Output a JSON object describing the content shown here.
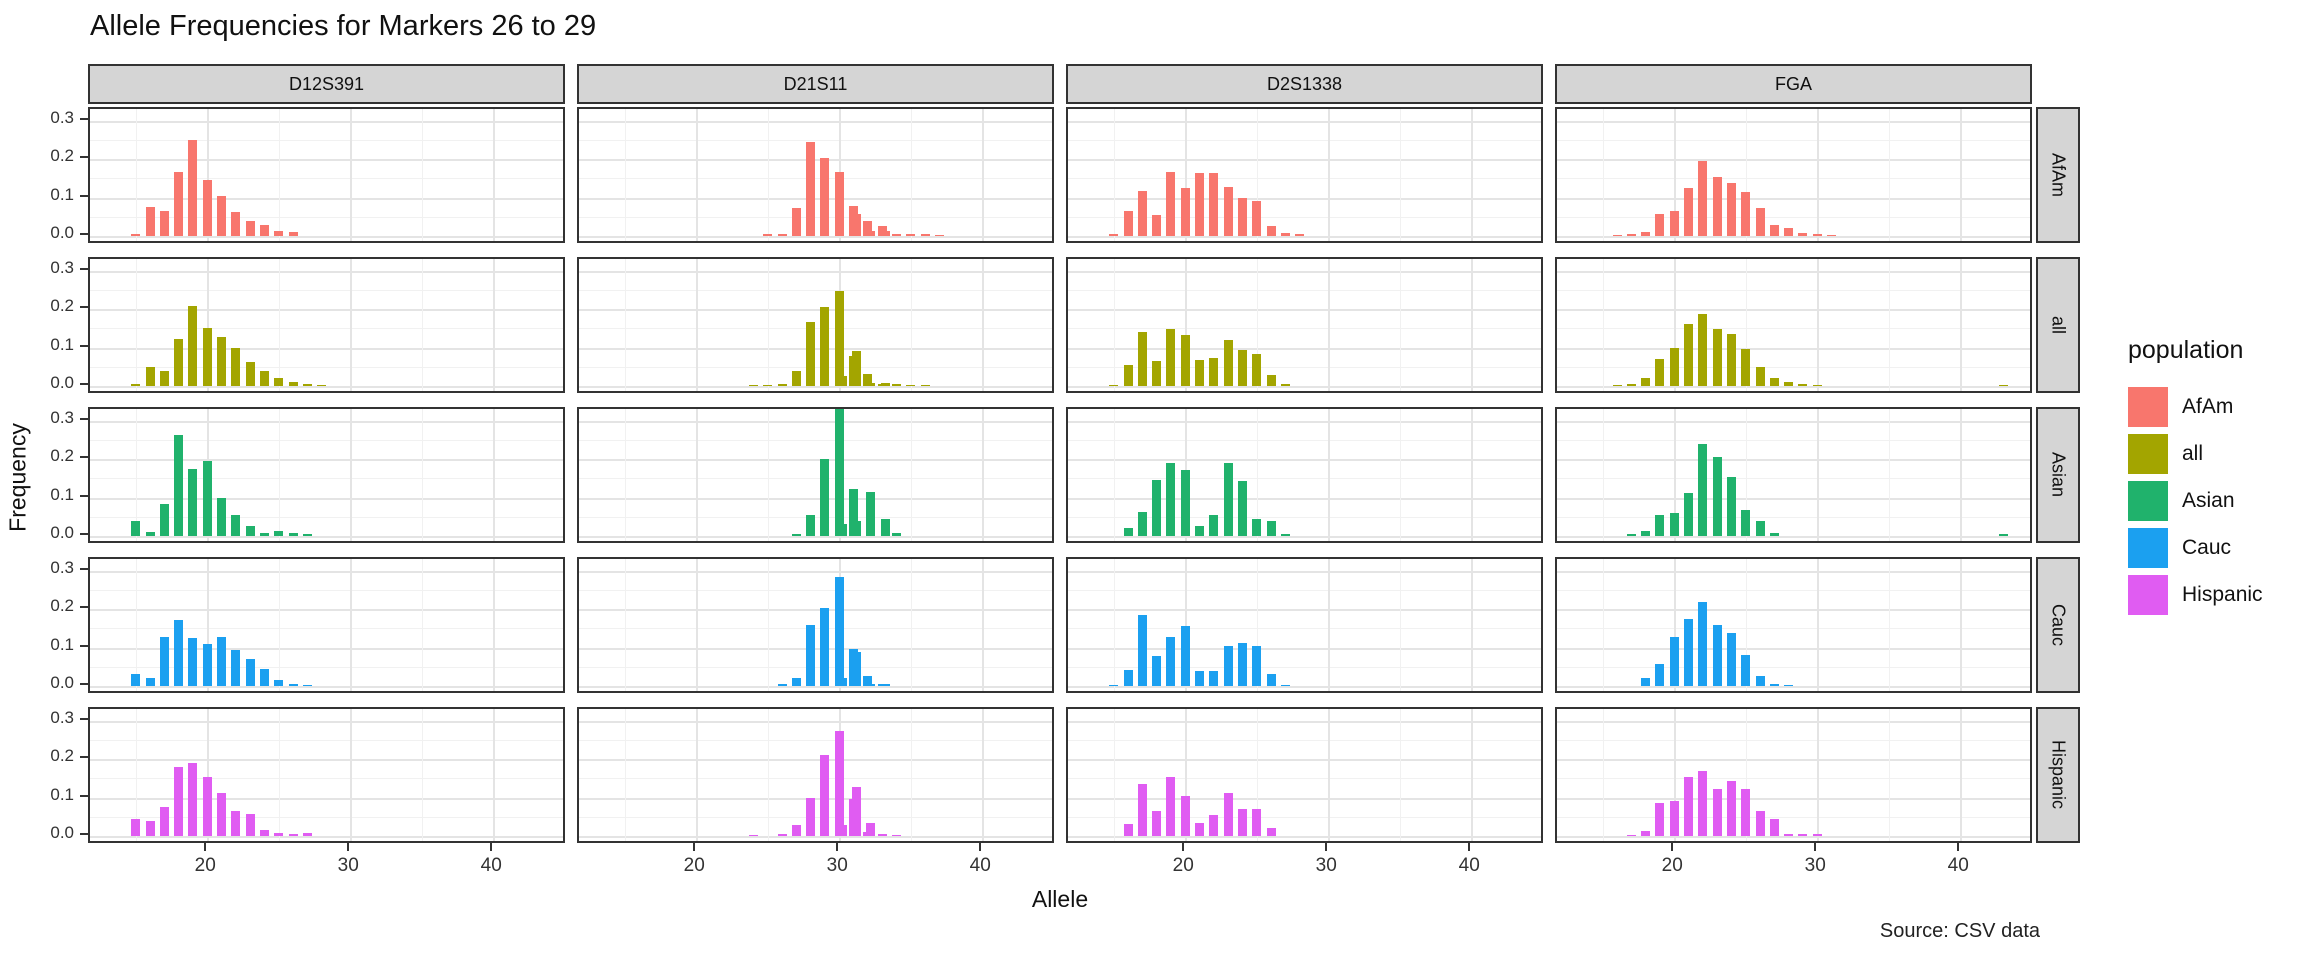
{
  "title": "Allele Frequencies for Markers 26 to 29",
  "axes": {
    "x_label": "Allele",
    "y_label": "Frequency",
    "x_ticks": [
      "20",
      "30",
      "40"
    ],
    "y_ticks": [
      "0.0",
      "0.1",
      "0.2",
      "0.3"
    ]
  },
  "source_note": "Source: CSV data",
  "legend": {
    "title": "population",
    "entries": [
      {
        "label": "AfAm",
        "color": "#F8766D"
      },
      {
        "label": "all",
        "color": "#A3A500"
      },
      {
        "label": "Asian",
        "color": "#20B26C"
      },
      {
        "label": "Cauc",
        "color": "#1BA0F0"
      },
      {
        "label": "Hispanic",
        "color": "#E05CF2"
      }
    ]
  },
  "chart_data": {
    "type": "bar",
    "title": "Allele Frequencies for Markers 26 to 29",
    "xlabel": "Allele",
    "ylabel": "Frequency",
    "facet_columns": [
      "D12S391",
      "D21S11",
      "D2S1338",
      "FGA"
    ],
    "facet_rows": [
      "AfAm",
      "all",
      "Asian",
      "Cauc",
      "Hispanic"
    ],
    "xlim": [
      12,
      46
    ],
    "ylim": [
      0,
      0.33
    ],
    "x_major_ticks": [
      20,
      30,
      40
    ],
    "y_major_ticks": [
      0.0,
      0.1,
      0.2,
      0.3
    ],
    "grid": "major+minor",
    "legend_position": "right",
    "panels": [
      {
        "marker": "D12S391",
        "population": "AfAm",
        "color": "#F8766D",
        "bars": [
          [
            15,
            0.004
          ],
          [
            16,
            0.076
          ],
          [
            17,
            0.065
          ],
          [
            18,
            0.165
          ],
          [
            19,
            0.25
          ],
          [
            20,
            0.145
          ],
          [
            21,
            0.104
          ],
          [
            22,
            0.062
          ],
          [
            23,
            0.04
          ],
          [
            24,
            0.028
          ],
          [
            25,
            0.012
          ],
          [
            26,
            0.01
          ]
        ]
      },
      {
        "marker": "D21S11",
        "population": "AfAm",
        "color": "#F8766D",
        "bars": [
          [
            25,
            0.004
          ],
          [
            26,
            0.006
          ],
          [
            27,
            0.073
          ],
          [
            28,
            0.245
          ],
          [
            29,
            0.203
          ],
          [
            30,
            0.165
          ],
          [
            31,
            0.078
          ],
          [
            31.2,
            0.057
          ],
          [
            32,
            0.04
          ],
          [
            32.2,
            0.012
          ],
          [
            33,
            0.025
          ],
          [
            33.2,
            0.012
          ],
          [
            34,
            0.005
          ],
          [
            35,
            0.006
          ],
          [
            36,
            0.004
          ],
          [
            37,
            0.003
          ]
        ]
      },
      {
        "marker": "D2S1338",
        "population": "AfAm",
        "color": "#F8766D",
        "bars": [
          [
            15,
            0.005
          ],
          [
            16,
            0.065
          ],
          [
            17,
            0.118
          ],
          [
            18,
            0.055
          ],
          [
            19,
            0.165
          ],
          [
            20,
            0.125
          ],
          [
            21,
            0.163
          ],
          [
            22,
            0.163
          ],
          [
            23,
            0.127
          ],
          [
            24,
            0.098
          ],
          [
            25,
            0.092
          ],
          [
            26,
            0.026
          ],
          [
            27,
            0.009
          ],
          [
            28,
            0.004
          ]
        ]
      },
      {
        "marker": "FGA",
        "population": "AfAm",
        "color": "#F8766D",
        "bars": [
          [
            16,
            0.003
          ],
          [
            17,
            0.004
          ],
          [
            18,
            0.01
          ],
          [
            19,
            0.058
          ],
          [
            20,
            0.066
          ],
          [
            21,
            0.124
          ],
          [
            22,
            0.195
          ],
          [
            23,
            0.154
          ],
          [
            24,
            0.138
          ],
          [
            25,
            0.114
          ],
          [
            26,
            0.074
          ],
          [
            27,
            0.029
          ],
          [
            28,
            0.021
          ],
          [
            29,
            0.008
          ],
          [
            30,
            0.004
          ],
          [
            31,
            0.003
          ]
        ]
      },
      {
        "marker": "D12S391",
        "population": "all",
        "color": "#A3A500",
        "bars": [
          [
            15,
            0.004
          ],
          [
            16,
            0.05
          ],
          [
            17,
            0.04
          ],
          [
            18,
            0.122
          ],
          [
            19,
            0.207
          ],
          [
            20,
            0.15
          ],
          [
            21,
            0.127
          ],
          [
            22,
            0.1
          ],
          [
            23,
            0.063
          ],
          [
            24,
            0.04
          ],
          [
            25,
            0.022
          ],
          [
            26,
            0.01
          ],
          [
            27,
            0.004
          ],
          [
            28,
            0.002
          ]
        ]
      },
      {
        "marker": "D21S11",
        "population": "all",
        "color": "#A3A500",
        "bars": [
          [
            24,
            0.003
          ],
          [
            25,
            0.003
          ],
          [
            26,
            0.004
          ],
          [
            27,
            0.038
          ],
          [
            28,
            0.165
          ],
          [
            29,
            0.205
          ],
          [
            30,
            0.247
          ],
          [
            30.2,
            0.025
          ],
          [
            31,
            0.078
          ],
          [
            31.2,
            0.091
          ],
          [
            32,
            0.031
          ],
          [
            32.2,
            0.008
          ],
          [
            33,
            0.004
          ],
          [
            33.2,
            0.009
          ],
          [
            34,
            0.004
          ],
          [
            35,
            0.003
          ],
          [
            36,
            0.003
          ]
        ]
      },
      {
        "marker": "D2S1338",
        "population": "all",
        "color": "#A3A500",
        "bars": [
          [
            15,
            0.003
          ],
          [
            16,
            0.055
          ],
          [
            17,
            0.14
          ],
          [
            18,
            0.065
          ],
          [
            19,
            0.148
          ],
          [
            20,
            0.132
          ],
          [
            21,
            0.068
          ],
          [
            22,
            0.072
          ],
          [
            23,
            0.12
          ],
          [
            24,
            0.094
          ],
          [
            25,
            0.084
          ],
          [
            26,
            0.028
          ],
          [
            27,
            0.004
          ]
        ]
      },
      {
        "marker": "FGA",
        "population": "all",
        "color": "#A3A500",
        "bars": [
          [
            16,
            0.003
          ],
          [
            17,
            0.005
          ],
          [
            18,
            0.02
          ],
          [
            19,
            0.069
          ],
          [
            20,
            0.1
          ],
          [
            21,
            0.162
          ],
          [
            22,
            0.187
          ],
          [
            23,
            0.149
          ],
          [
            24,
            0.135
          ],
          [
            25,
            0.097
          ],
          [
            26,
            0.049
          ],
          [
            27,
            0.022
          ],
          [
            28,
            0.011
          ],
          [
            29,
            0.004
          ],
          [
            30,
            0.003
          ],
          [
            43,
            0.002
          ]
        ]
      },
      {
        "marker": "D12S391",
        "population": "Asian",
        "color": "#20B26C",
        "bars": [
          [
            15,
            0.04
          ],
          [
            16,
            0.01
          ],
          [
            17,
            0.082
          ],
          [
            18,
            0.262
          ],
          [
            19,
            0.175
          ],
          [
            20,
            0.196
          ],
          [
            21,
            0.098
          ],
          [
            22,
            0.054
          ],
          [
            23,
            0.025
          ],
          [
            24,
            0.008
          ],
          [
            25,
            0.014
          ],
          [
            26,
            0.009
          ],
          [
            27,
            0.004
          ]
        ]
      },
      {
        "marker": "D21S11",
        "population": "Asian",
        "color": "#20B26C",
        "bars": [
          [
            27,
            0.004
          ],
          [
            28,
            0.055
          ],
          [
            29,
            0.2
          ],
          [
            30,
            0.33
          ],
          [
            30.2,
            0.03
          ],
          [
            31,
            0.122
          ],
          [
            31.2,
            0.038
          ],
          [
            32.2,
            0.113
          ],
          [
            33.2,
            0.045
          ],
          [
            34,
            0.008
          ]
        ]
      },
      {
        "marker": "D2S1338",
        "population": "Asian",
        "color": "#20B26C",
        "bars": [
          [
            16,
            0.022
          ],
          [
            17,
            0.062
          ],
          [
            18,
            0.145
          ],
          [
            19,
            0.19
          ],
          [
            20,
            0.172
          ],
          [
            21,
            0.025
          ],
          [
            22,
            0.055
          ],
          [
            23,
            0.19
          ],
          [
            24,
            0.142
          ],
          [
            25,
            0.045
          ],
          [
            26,
            0.04
          ],
          [
            27,
            0.005
          ]
        ]
      },
      {
        "marker": "FGA",
        "population": "Asian",
        "color": "#20B26C",
        "bars": [
          [
            17,
            0.004
          ],
          [
            18,
            0.012
          ],
          [
            19,
            0.054
          ],
          [
            20,
            0.059
          ],
          [
            21,
            0.111
          ],
          [
            22,
            0.238
          ],
          [
            23,
            0.205
          ],
          [
            24,
            0.153
          ],
          [
            25,
            0.068
          ],
          [
            26,
            0.039
          ],
          [
            27,
            0.008
          ],
          [
            43,
            0.005
          ]
        ]
      },
      {
        "marker": "D12S391",
        "population": "Cauc",
        "color": "#1BA0F0",
        "bars": [
          [
            15,
            0.032
          ],
          [
            16,
            0.022
          ],
          [
            17,
            0.127
          ],
          [
            18,
            0.171
          ],
          [
            19,
            0.124
          ],
          [
            20,
            0.11
          ],
          [
            21,
            0.128
          ],
          [
            22,
            0.094
          ],
          [
            23,
            0.07
          ],
          [
            24,
            0.044
          ],
          [
            25,
            0.015
          ],
          [
            26,
            0.004
          ],
          [
            27,
            0.003
          ]
        ]
      },
      {
        "marker": "D21S11",
        "population": "Cauc",
        "color": "#1BA0F0",
        "bars": [
          [
            26,
            0.004
          ],
          [
            27,
            0.022
          ],
          [
            28,
            0.159
          ],
          [
            29,
            0.202
          ],
          [
            30,
            0.283
          ],
          [
            30.2,
            0.022
          ],
          [
            31,
            0.097
          ],
          [
            31.2,
            0.089
          ],
          [
            32,
            0.027
          ],
          [
            32.2,
            0.004
          ],
          [
            33,
            0.005
          ],
          [
            33.2,
            0.004
          ]
        ]
      },
      {
        "marker": "D2S1338",
        "population": "Cauc",
        "color": "#1BA0F0",
        "bars": [
          [
            15,
            0.003
          ],
          [
            16,
            0.042
          ],
          [
            17,
            0.185
          ],
          [
            18,
            0.078
          ],
          [
            19,
            0.127
          ],
          [
            20,
            0.157
          ],
          [
            21,
            0.04
          ],
          [
            22,
            0.04
          ],
          [
            23,
            0.105
          ],
          [
            24,
            0.112
          ],
          [
            25,
            0.103
          ],
          [
            26,
            0.032
          ],
          [
            27,
            0.003
          ]
        ]
      },
      {
        "marker": "FGA",
        "population": "Cauc",
        "color": "#1BA0F0",
        "bars": [
          [
            18,
            0.022
          ],
          [
            19,
            0.056
          ],
          [
            20,
            0.128
          ],
          [
            21,
            0.174
          ],
          [
            22,
            0.218
          ],
          [
            23,
            0.158
          ],
          [
            24,
            0.137
          ],
          [
            25,
            0.08
          ],
          [
            26,
            0.027
          ],
          [
            27,
            0.004
          ],
          [
            28,
            0.003
          ]
        ]
      },
      {
        "marker": "D12S391",
        "population": "Hispanic",
        "color": "#E05CF2",
        "bars": [
          [
            15,
            0.043
          ],
          [
            16,
            0.039
          ],
          [
            17,
            0.076
          ],
          [
            18,
            0.18
          ],
          [
            19,
            0.19
          ],
          [
            20,
            0.154
          ],
          [
            21,
            0.112
          ],
          [
            22,
            0.066
          ],
          [
            23,
            0.056
          ],
          [
            24,
            0.016
          ],
          [
            25,
            0.007
          ],
          [
            26,
            0.006
          ],
          [
            27,
            0.007
          ]
        ]
      },
      {
        "marker": "D21S11",
        "population": "Hispanic",
        "color": "#E05CF2",
        "bars": [
          [
            24,
            0.003
          ],
          [
            26,
            0.004
          ],
          [
            27,
            0.028
          ],
          [
            28,
            0.098
          ],
          [
            29,
            0.21
          ],
          [
            30,
            0.273
          ],
          [
            30.2,
            0.028
          ],
          [
            31,
            0.096
          ],
          [
            31.2,
            0.128
          ],
          [
            32,
            0.01
          ],
          [
            32.2,
            0.033
          ],
          [
            33,
            0.004
          ],
          [
            34,
            0.003
          ]
        ]
      },
      {
        "marker": "D2S1338",
        "population": "Hispanic",
        "color": "#E05CF2",
        "bars": [
          [
            16,
            0.03
          ],
          [
            17,
            0.135
          ],
          [
            18,
            0.066
          ],
          [
            19,
            0.152
          ],
          [
            20,
            0.105
          ],
          [
            21,
            0.033
          ],
          [
            22,
            0.055
          ],
          [
            23,
            0.112
          ],
          [
            24,
            0.07
          ],
          [
            25,
            0.071
          ],
          [
            26,
            0.022
          ]
        ]
      },
      {
        "marker": "FGA",
        "population": "Hispanic",
        "color": "#E05CF2",
        "bars": [
          [
            17,
            0.003
          ],
          [
            18,
            0.012
          ],
          [
            19,
            0.085
          ],
          [
            20,
            0.091
          ],
          [
            21,
            0.152
          ],
          [
            22,
            0.169
          ],
          [
            23,
            0.123
          ],
          [
            24,
            0.142
          ],
          [
            25,
            0.122
          ],
          [
            26,
            0.065
          ],
          [
            27,
            0.045
          ],
          [
            28,
            0.005
          ],
          [
            29,
            0.004
          ],
          [
            30,
            0.004
          ]
        ]
      }
    ]
  }
}
